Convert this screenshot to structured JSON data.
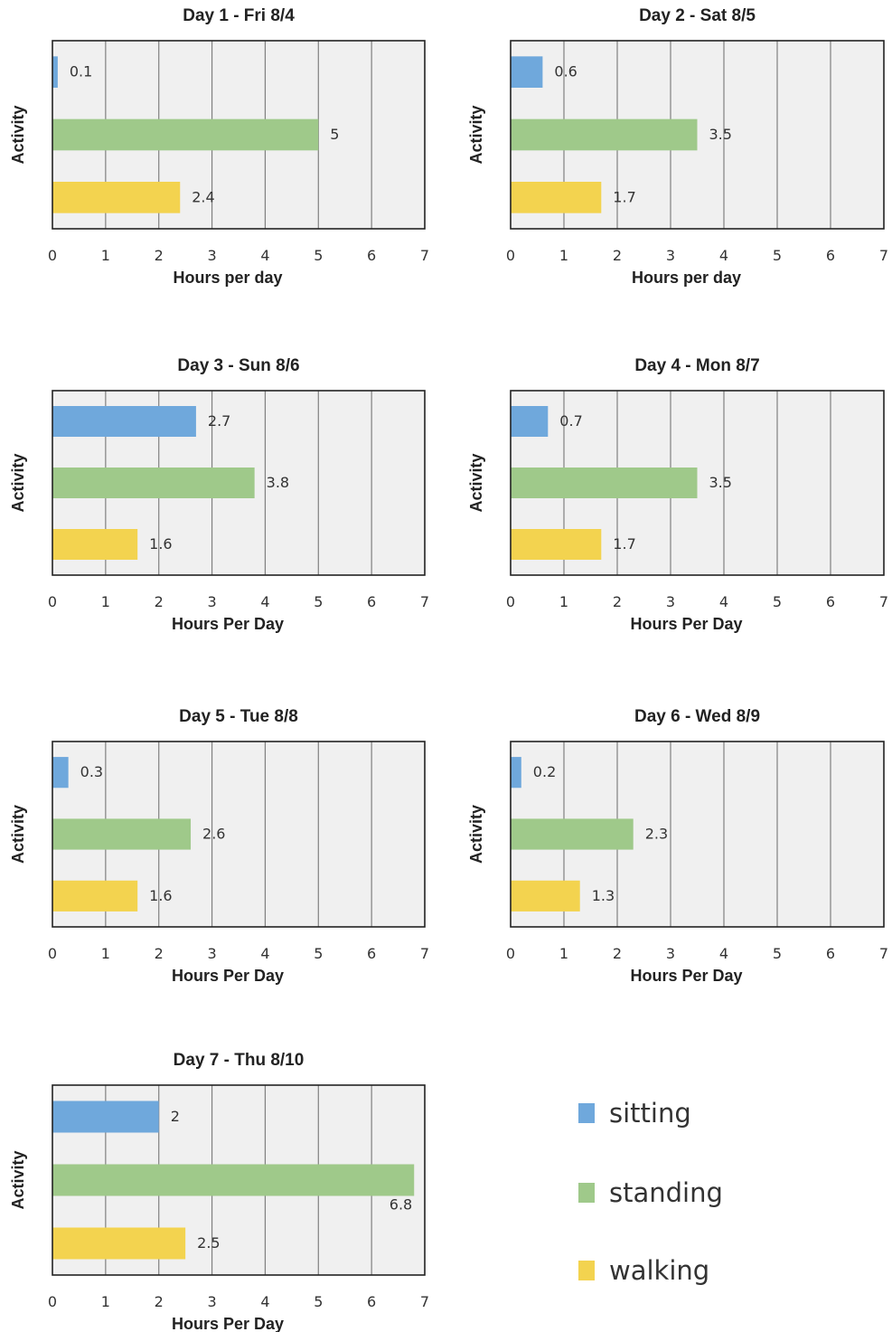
{
  "colors": {
    "sitting": "#6fa8dc",
    "standing": "#9fc98a",
    "walking": "#f3d34f",
    "plot_bg": "#f0f0f0",
    "grid": "#808080",
    "frame": "#222222"
  },
  "chart_data": [
    {
      "type": "bar",
      "orientation": "horizontal",
      "title": "Day 1 - Fri  8/4",
      "xlabel": "Hours per day",
      "ylabel": "Activity",
      "categories": [
        "sitting",
        "standing",
        "walking"
      ],
      "values": [
        0.1,
        5,
        2.4
      ],
      "value_labels": [
        "0.1",
        "5",
        "2.4"
      ],
      "xlim": [
        0,
        7
      ],
      "xticks": [
        "0",
        "1",
        "2",
        "3",
        "4",
        "5",
        "6",
        "7"
      ],
      "grid": true
    },
    {
      "type": "bar",
      "orientation": "horizontal",
      "title": "Day 2 - Sat  8/5",
      "xlabel": "Hours per day",
      "ylabel": "Activity",
      "categories": [
        "sitting",
        "standing",
        "walking"
      ],
      "values": [
        0.6,
        3.5,
        1.7
      ],
      "value_labels": [
        "0.6",
        "3.5",
        "1.7"
      ],
      "xlim": [
        0,
        7
      ],
      "xticks": [
        "0",
        "1",
        "2",
        "3",
        "4",
        "5",
        "6",
        "7"
      ],
      "grid": true
    },
    {
      "type": "bar",
      "orientation": "horizontal",
      "title": "Day 3 - Sun  8/6",
      "xlabel": "Hours Per Day",
      "ylabel": "Activity",
      "categories": [
        "sitting",
        "standing",
        "walking"
      ],
      "values": [
        2.7,
        3.8,
        1.6
      ],
      "value_labels": [
        "2.7",
        "3.8",
        "1.6"
      ],
      "xlim": [
        0,
        7
      ],
      "xticks": [
        "0",
        "1",
        "2",
        "3",
        "4",
        "5",
        "6",
        "7"
      ],
      "grid": true
    },
    {
      "type": "bar",
      "orientation": "horizontal",
      "title": "Day 4 - Mon  8/7",
      "xlabel": "Hours Per Day",
      "ylabel": "Activity",
      "categories": [
        "sitting",
        "standing",
        "walking"
      ],
      "values": [
        0.7,
        3.5,
        1.7
      ],
      "value_labels": [
        "0.7",
        "3.5",
        "1.7"
      ],
      "xlim": [
        0,
        7
      ],
      "xticks": [
        "0",
        "1",
        "2",
        "3",
        "4",
        "5",
        "6",
        "7"
      ],
      "grid": true
    },
    {
      "type": "bar",
      "orientation": "horizontal",
      "title": "Day 5 - Tue  8/8",
      "xlabel": "Hours Per Day",
      "ylabel": "Activity",
      "categories": [
        "sitting",
        "standing",
        "walking"
      ],
      "values": [
        0.3,
        2.6,
        1.6
      ],
      "value_labels": [
        "0.3",
        "2.6",
        "1.6"
      ],
      "xlim": [
        0,
        7
      ],
      "xticks": [
        "0",
        "1",
        "2",
        "3",
        "4",
        "5",
        "6",
        "7"
      ],
      "grid": true
    },
    {
      "type": "bar",
      "orientation": "horizontal",
      "title": "Day 6 - Wed  8/9",
      "xlabel": "Hours Per Day",
      "ylabel": "Activity",
      "categories": [
        "sitting",
        "standing",
        "walking"
      ],
      "values": [
        0.2,
        2.3,
        1.3
      ],
      "value_labels": [
        "0.2",
        "2.3",
        "1.3"
      ],
      "xlim": [
        0,
        7
      ],
      "xticks": [
        "0",
        "1",
        "2",
        "3",
        "4",
        "5",
        "6",
        "7"
      ],
      "grid": true
    },
    {
      "type": "bar",
      "orientation": "horizontal",
      "title": "Day 7 - Thu  8/10",
      "xlabel": "Hours Per Day",
      "ylabel": "Activity",
      "categories": [
        "sitting",
        "standing",
        "walking"
      ],
      "values": [
        2,
        6.8,
        2.5
      ],
      "value_labels": [
        "2",
        "6.8",
        "2.5"
      ],
      "xlim": [
        0,
        7
      ],
      "xticks": [
        "0",
        "1",
        "2",
        "3",
        "4",
        "5",
        "6",
        "7"
      ],
      "grid": true
    }
  ],
  "legend": {
    "placement": "bottom-right",
    "items": [
      {
        "label": "sitting",
        "color": "#6fa8dc"
      },
      {
        "label": "standing",
        "color": "#9fc98a"
      },
      {
        "label": "walking",
        "color": "#f3d34f"
      }
    ]
  }
}
